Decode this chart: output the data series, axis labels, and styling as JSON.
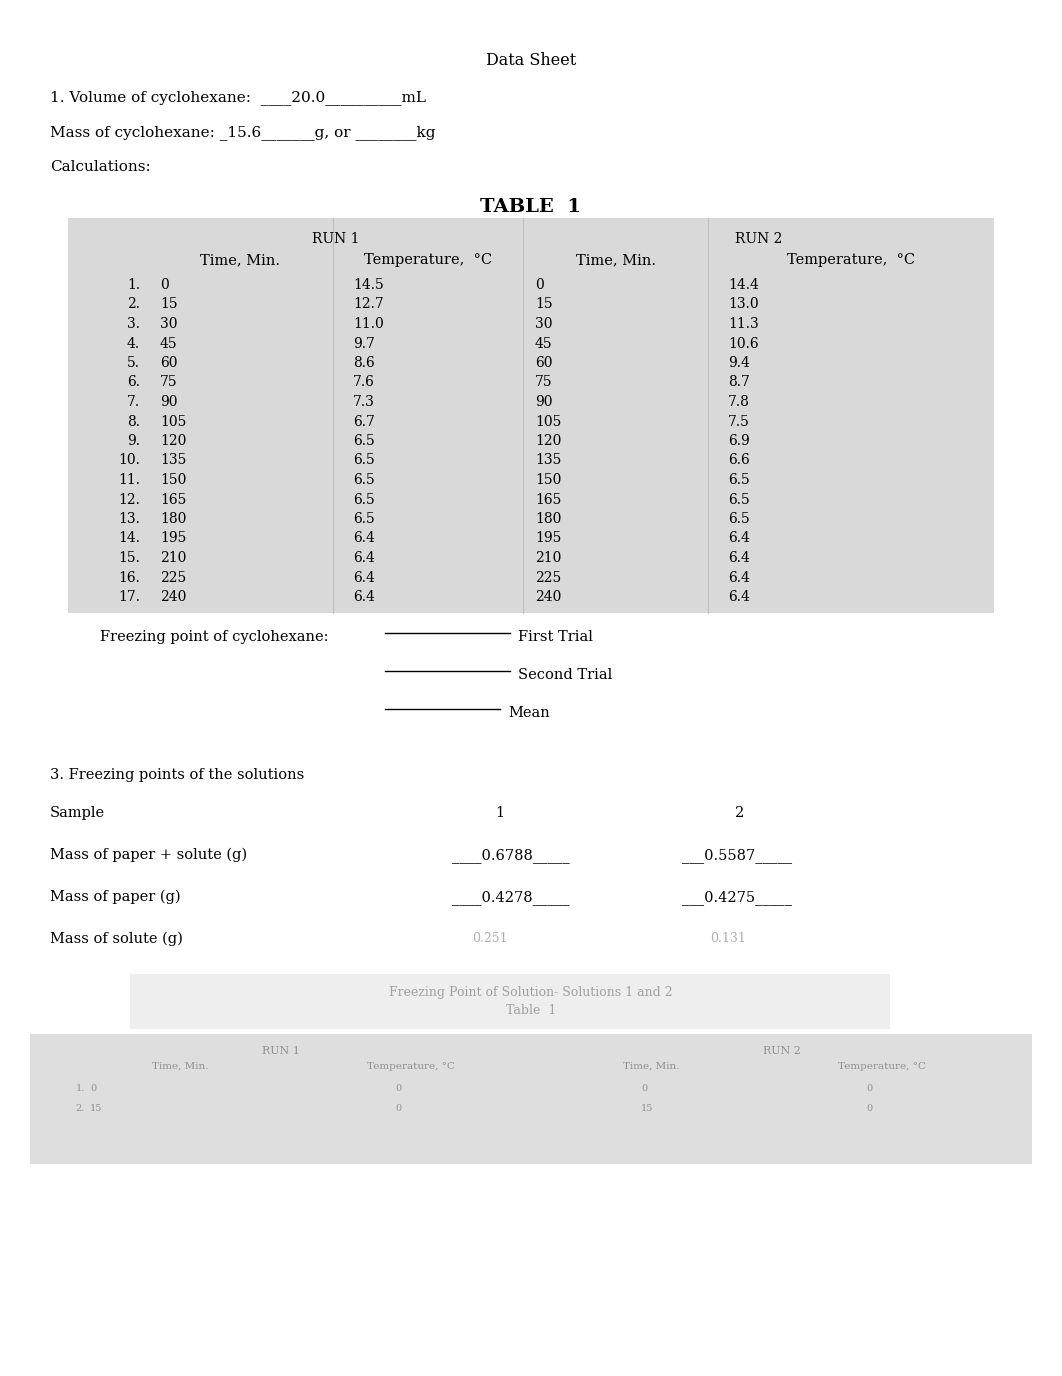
{
  "title": "Data Sheet",
  "line1_a": "1. Volume of cyclohexane:  ____20.0__________mL",
  "line2_a": "Mass of cyclohexane: _15.6_______g, or ________kg",
  "line3_a": "Calculations:",
  "table_title": "TABLE  1",
  "run1_label": "RUN 1",
  "run2_label": "RUN 2",
  "col_headers": [
    "Time, Min.",
    "Temperature,  °C",
    "Time, Min.",
    "Temperature,  °C"
  ],
  "rows": [
    [
      1,
      "0",
      "14.5",
      "0",
      "14.4"
    ],
    [
      2,
      "15",
      "12.7",
      "15",
      "13.0"
    ],
    [
      3,
      "30",
      "11.0",
      "30",
      "11.3"
    ],
    [
      4,
      "45",
      "9.7",
      "45",
      "10.6"
    ],
    [
      5,
      "60",
      "8.6",
      "60",
      "9.4"
    ],
    [
      6,
      "75",
      "7.6",
      "75",
      "8.7"
    ],
    [
      7,
      "90",
      "7.3",
      "90",
      "7.8"
    ],
    [
      8,
      "105",
      "6.7",
      "105",
      "7.5"
    ],
    [
      9,
      "120",
      "6.5",
      "120",
      "6.9"
    ],
    [
      10,
      "135",
      "6.5",
      "135",
      "6.6"
    ],
    [
      11,
      "150",
      "6.5",
      "150",
      "6.5"
    ],
    [
      12,
      "165",
      "6.5",
      "165",
      "6.5"
    ],
    [
      13,
      "180",
      "6.5",
      "180",
      "6.5"
    ],
    [
      14,
      "195",
      "6.4",
      "195",
      "6.4"
    ],
    [
      15,
      "210",
      "6.4",
      "210",
      "6.4"
    ],
    [
      16,
      "225",
      "6.4",
      "225",
      "6.4"
    ],
    [
      17,
      "240",
      "6.4",
      "240",
      "6.4"
    ]
  ],
  "freezing_label": "Freezing point of cyclohexane:",
  "first_trial_label": "First Trial",
  "second_trial_label": "Second Trial",
  "mean_label": "Mean",
  "section3": "3. Freezing points of the solutions",
  "sample_label": "Sample",
  "sample1": "1",
  "sample2": "2",
  "paper_solute_label": "Mass of paper + solute (g)",
  "paper_solute_val1": "____0.6788_____",
  "paper_solute_val2": "___0.5587_____",
  "paper_label": "Mass of paper (g)",
  "paper_val1": "____0.4278_____",
  "paper_val2": "___0.4275_____",
  "solute_label": "Mass of solute (g)",
  "table_bg": "#d9d9d9",
  "text_color": "#000000",
  "page_bg": "#ffffff",
  "divider_color": "#c0c0c0",
  "font_family": "DejaVu Serif"
}
